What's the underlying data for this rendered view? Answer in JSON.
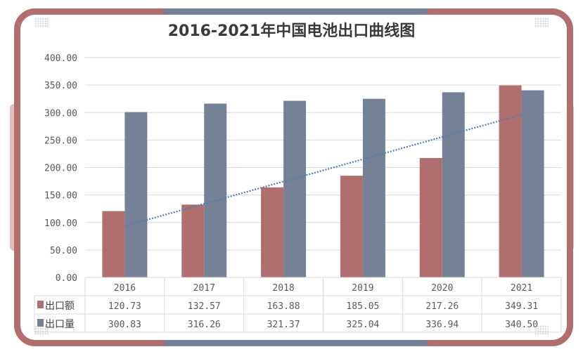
{
  "chart_data": {
    "type": "bar",
    "title": "2016-2021年中国电池出口曲线图",
    "categories": [
      "2016",
      "2017",
      "2018",
      "2019",
      "2020",
      "2021"
    ],
    "series": [
      {
        "name": "出口额",
        "color": "#b06e6e",
        "values": [
          120.73,
          132.57,
          163.88,
          185.05,
          217.26,
          349.31
        ]
      },
      {
        "name": "出口量",
        "color": "#758295",
        "values": [
          300.83,
          316.26,
          321.37,
          325.04,
          336.94,
          340.5
        ]
      }
    ],
    "trendline": {
      "series": "出口额",
      "type": "linear",
      "color": "#4a7ebb",
      "style": "dotted"
    },
    "ylim": [
      0,
      400
    ],
    "yticks": [
      "0.00",
      "50.00",
      "100.00",
      "150.00",
      "200.00",
      "250.00",
      "300.00",
      "350.00",
      "400.00"
    ],
    "grid": true,
    "data_table": true
  }
}
